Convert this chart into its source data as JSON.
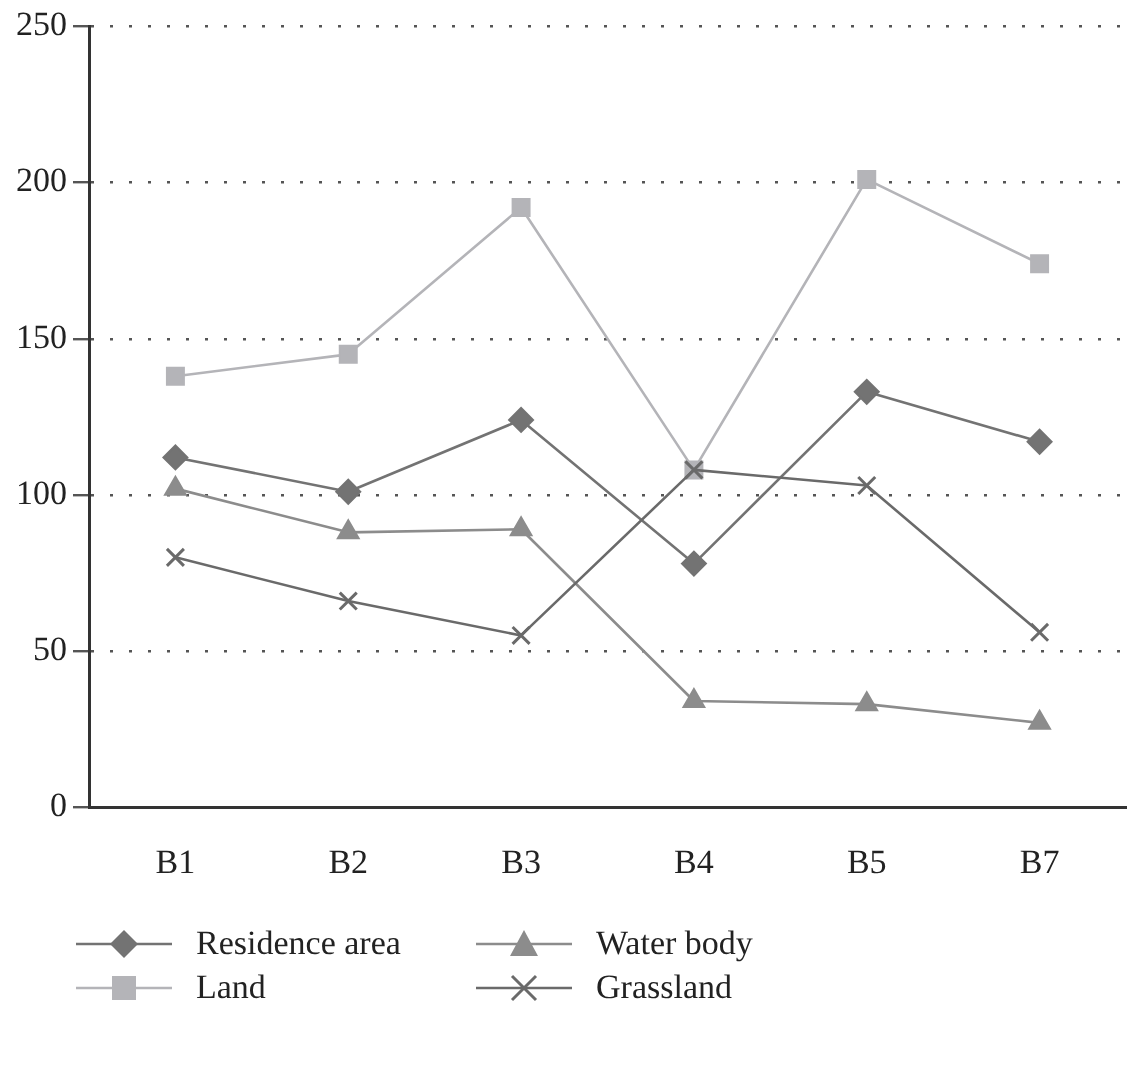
{
  "chart_data": {
    "type": "line",
    "categories": [
      "B1",
      "B2",
      "B3",
      "B4",
      "B5",
      "B7"
    ],
    "series": [
      {
        "name": "Residence area",
        "color": "#737373",
        "marker": "diamond",
        "values": [
          112,
          101,
          124,
          78,
          133,
          117
        ]
      },
      {
        "name": "Water body",
        "color": "#8c8c8c",
        "marker": "triangle",
        "values": [
          102,
          88,
          89,
          34,
          33,
          27
        ]
      },
      {
        "name": "Land",
        "color": "#b4b4b8",
        "marker": "square",
        "values": [
          138,
          145,
          192,
          108,
          201,
          174
        ]
      },
      {
        "name": "Grassland",
        "color": "#6a6a6a",
        "marker": "cross",
        "values": [
          80,
          66,
          55,
          108,
          103,
          56
        ]
      }
    ],
    "ylim": [
      0,
      250
    ],
    "yticks": [
      0,
      50,
      100,
      150,
      200,
      250
    ],
    "grid": "y",
    "legend": "bottom",
    "line_style": "solid"
  }
}
